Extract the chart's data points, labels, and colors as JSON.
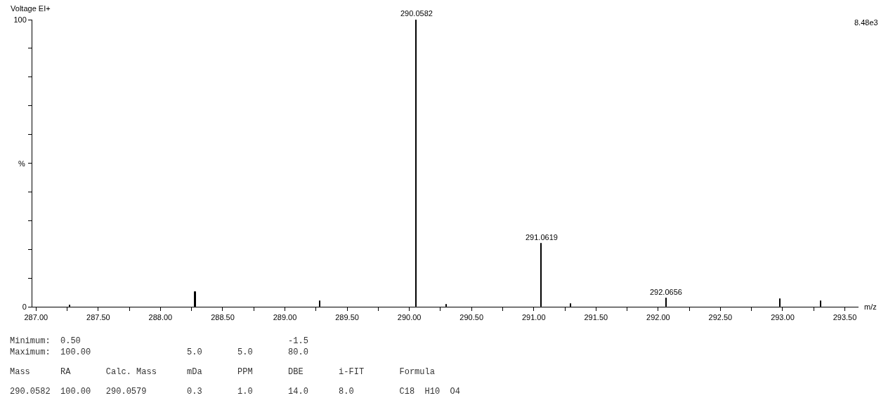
{
  "chart_data": {
    "type": "bar",
    "title": "Voltage EI+",
    "xlabel": "m/z",
    "ylabel": "%",
    "x": [
      287.27,
      288.28,
      289.28,
      290.0582,
      290.3,
      291.0619,
      291.3,
      292.0656,
      292.98,
      293.31
    ],
    "values": [
      0.5,
      5.1,
      2.0,
      100,
      0.8,
      22.1,
      1.1,
      2.9,
      2.7,
      2.0
    ],
    "color": "#000000",
    "xlim": [
      286.97,
      293.61
    ],
    "ylim": [
      0,
      100
    ],
    "xticks": [
      {
        "value": 287.0,
        "label": "287.00"
      },
      {
        "value": 287.25,
        "label": null
      },
      {
        "value": 287.5,
        "label": "287.50"
      },
      {
        "value": 287.75,
        "label": null
      },
      {
        "value": 288.0,
        "label": "288.00"
      },
      {
        "value": 288.25,
        "label": null
      },
      {
        "value": 288.5,
        "label": "288.50"
      },
      {
        "value": 288.75,
        "label": null
      },
      {
        "value": 289.0,
        "label": "289.00"
      },
      {
        "value": 289.25,
        "label": null
      },
      {
        "value": 289.5,
        "label": "289.50"
      },
      {
        "value": 289.75,
        "label": null
      },
      {
        "value": 290.0,
        "label": "290.00"
      },
      {
        "value": 290.25,
        "label": null
      },
      {
        "value": 290.5,
        "label": "290.50"
      },
      {
        "value": 290.75,
        "label": null
      },
      {
        "value": 291.0,
        "label": "291.00"
      },
      {
        "value": 291.25,
        "label": null
      },
      {
        "value": 291.5,
        "label": "291.50"
      },
      {
        "value": 291.75,
        "label": null
      },
      {
        "value": 292.0,
        "label": "292.00"
      },
      {
        "value": 292.25,
        "label": null
      },
      {
        "value": 292.5,
        "label": "292.50"
      },
      {
        "value": 292.75,
        "label": null
      },
      {
        "value": 293.0,
        "label": "293.00"
      },
      {
        "value": 293.25,
        "label": null
      },
      {
        "value": 293.5,
        "label": "293.50"
      }
    ],
    "yticks": [
      0,
      {
        "value": 10,
        "label": null
      },
      {
        "value": 20,
        "label": null
      },
      {
        "value": 30,
        "label": null
      },
      {
        "value": 40,
        "label": null
      },
      {
        "value": 50,
        "label": null
      },
      {
        "value": 60,
        "label": null
      },
      {
        "value": 70,
        "label": null
      },
      {
        "value": 80,
        "label": null
      },
      {
        "value": 90,
        "label": null
      },
      100
    ],
    "annotations": [
      {
        "text": "290.0582",
        "x": 290.0582,
        "y": 100
      },
      {
        "text": "291.0619",
        "x": 291.0619,
        "y": 22.1
      },
      {
        "text": "292.0656",
        "x": 292.0656,
        "y": 2.9
      },
      "8.48e3",
      "Minimum:  0.50                                         -1.5",
      "Maximum:  100.00                   5.0       5.0       80.0",
      "Mass      RA       Calc. Mass      mDa       PPM       DBE       i-FIT       Formula",
      "290.0582  100.00   290.0579        0.3       1.0       14.0      8.0         C18  H10  O4"
    ]
  }
}
